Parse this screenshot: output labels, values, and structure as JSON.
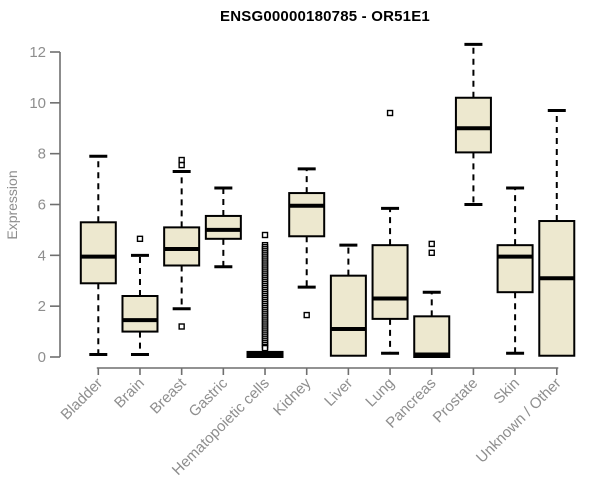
{
  "chart_data": {
    "type": "boxplot",
    "title": "ENSG00000180785 - OR51E1",
    "ylabel": "Expression",
    "xlabel": "",
    "ylim": [
      0,
      12
    ],
    "yticks": [
      0,
      2,
      4,
      6,
      8,
      10,
      12
    ],
    "grid": "off",
    "legend": "none",
    "categories": [
      "Bladder",
      "Brain",
      "Breast",
      "Gastric",
      "Hematopoietic cells",
      "Kidney",
      "Liver",
      "Lung",
      "Pancreas",
      "Prostate",
      "Skin",
      "Unknown / Other"
    ],
    "boxes": [
      {
        "category": "Bladder",
        "whisker_low": 0.1,
        "q1": 2.9,
        "median": 3.95,
        "q3": 5.3,
        "whisker_high": 7.9,
        "outliers": []
      },
      {
        "category": "Brain",
        "whisker_low": 0.1,
        "q1": 1.0,
        "median": 1.45,
        "q3": 2.4,
        "whisker_high": 4.0,
        "outliers": [
          4.65
        ]
      },
      {
        "category": "Breast",
        "whisker_low": 1.9,
        "q1": 3.6,
        "median": 4.25,
        "q3": 5.1,
        "whisker_high": 7.3,
        "outliers": [
          7.75,
          7.55,
          1.2
        ]
      },
      {
        "category": "Gastric",
        "whisker_low": 3.55,
        "q1": 4.65,
        "median": 5.0,
        "q3": 5.55,
        "whisker_high": 6.65,
        "outliers": []
      },
      {
        "category": "Hematopoietic cells",
        "whisker_low": 0.0,
        "q1": 0.0,
        "median": 0.1,
        "q3": 0.2,
        "whisker_high": 0.2,
        "outliers": [
          4.8,
          4.4,
          4.32,
          4.24,
          4.16,
          4.08,
          4.0,
          3.92,
          3.84,
          3.76,
          3.68,
          3.6,
          3.52,
          3.44,
          3.36,
          3.28,
          3.2,
          3.12,
          3.04,
          2.96,
          2.88,
          2.8,
          2.72,
          2.64,
          2.56,
          2.48,
          2.4,
          2.32,
          2.24,
          2.16,
          2.08,
          2.0,
          1.92,
          1.84,
          1.76,
          1.68,
          1.6,
          1.52,
          1.44,
          1.36,
          1.28,
          1.2,
          1.12,
          1.04,
          0.96,
          0.88,
          0.8,
          0.72,
          0.64,
          0.56,
          0.48,
          0.4,
          0.35
        ]
      },
      {
        "category": "Kidney",
        "whisker_low": 2.75,
        "q1": 4.75,
        "median": 5.95,
        "q3": 6.45,
        "whisker_high": 7.4,
        "outliers": [
          1.65
        ]
      },
      {
        "category": "Liver",
        "whisker_low": 0.05,
        "q1": 0.05,
        "median": 1.1,
        "q3": 3.2,
        "whisker_high": 4.4,
        "outliers": []
      },
      {
        "category": "Lung",
        "whisker_low": 0.15,
        "q1": 1.5,
        "median": 2.3,
        "q3": 4.4,
        "whisker_high": 5.85,
        "outliers": [
          9.6
        ]
      },
      {
        "category": "Pancreas",
        "whisker_low": 0.0,
        "q1": 0.0,
        "median": 0.1,
        "q3": 1.6,
        "whisker_high": 2.55,
        "outliers": [
          4.45,
          4.1
        ]
      },
      {
        "category": "Prostate",
        "whisker_low": 6.0,
        "q1": 8.05,
        "median": 9.0,
        "q3": 10.2,
        "whisker_high": 12.3,
        "outliers": []
      },
      {
        "category": "Skin",
        "whisker_low": 0.15,
        "q1": 2.55,
        "median": 3.95,
        "q3": 4.4,
        "whisker_high": 6.65,
        "outliers": []
      },
      {
        "category": "Unknown / Other",
        "whisker_low": 0.05,
        "q1": 0.05,
        "median": 3.1,
        "q3": 5.35,
        "whisker_high": 9.7,
        "outliers": []
      }
    ],
    "style": {
      "box_fill": "#EDE8CF",
      "box_stroke": "#000000",
      "median_color": "#000000",
      "whisker_color": "#000000",
      "axis_color": "#6f6f6f",
      "label_color": "#8e8e8e",
      "title_color": "#000000",
      "background": "#ffffff"
    }
  }
}
